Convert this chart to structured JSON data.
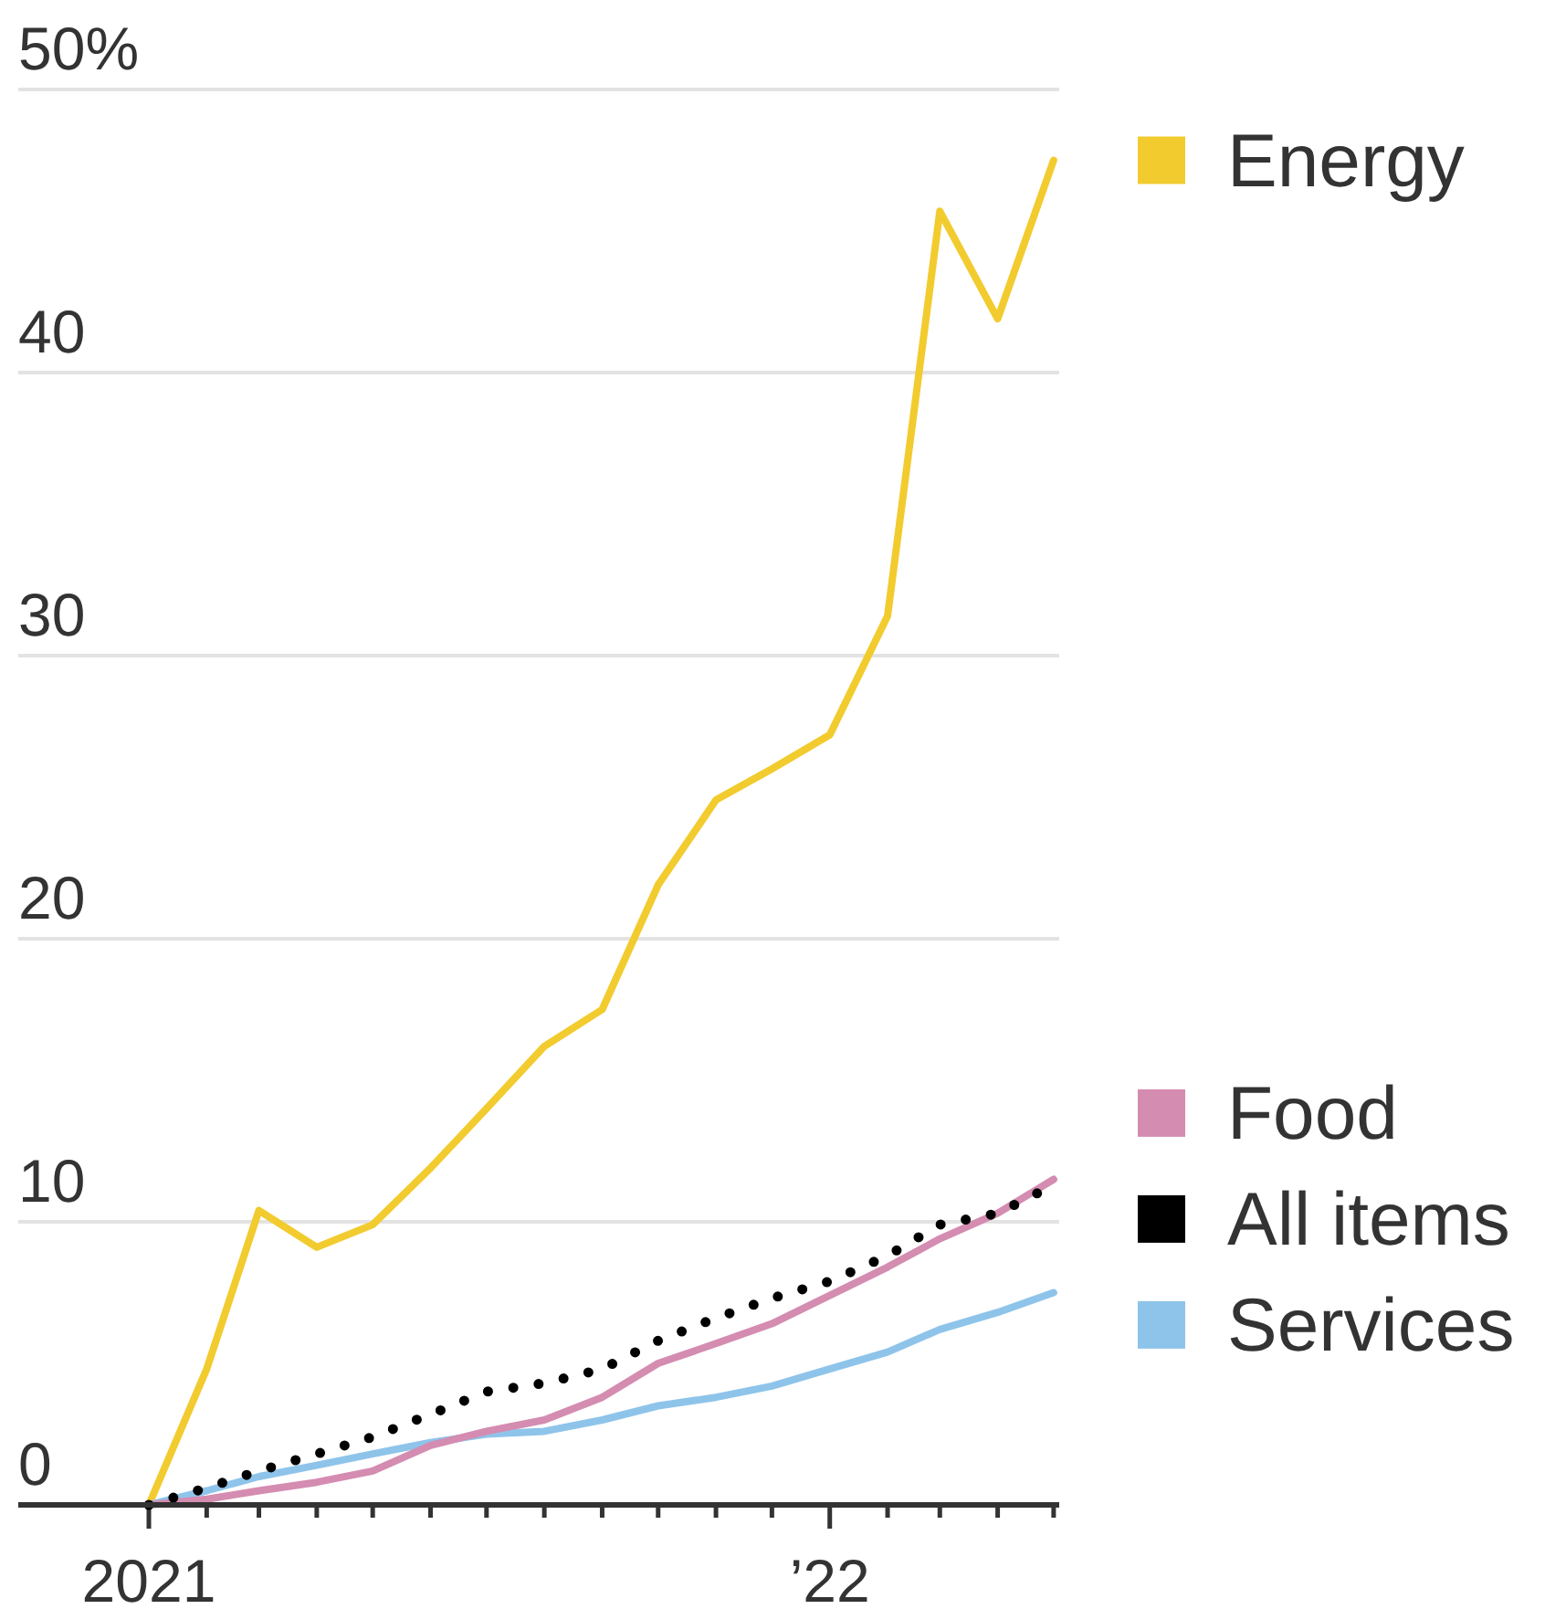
{
  "chart_data": {
    "type": "line",
    "x": [
      "2021-01",
      "2021-02",
      "2021-03",
      "2021-04",
      "2021-05",
      "2021-06",
      "2021-07",
      "2021-08",
      "2021-09",
      "2021-10",
      "2021-11",
      "2021-12",
      "2022-01",
      "2022-02",
      "2022-03",
      "2022-04",
      "2022-05"
    ],
    "xlim": [
      "2020-10-23",
      "2022-05-04"
    ],
    "xticks": [
      {
        "value": "2021-01",
        "label": "2021"
      },
      {
        "value": "2021-02",
        "label": null
      },
      {
        "value": "2021-03",
        "label": null
      },
      {
        "value": "2021-04",
        "label": null
      },
      {
        "value": "2021-05",
        "label": null
      },
      {
        "value": "2021-06",
        "label": null
      },
      {
        "value": "2021-07",
        "label": null
      },
      {
        "value": "2021-08",
        "label": null
      },
      {
        "value": "2021-09",
        "label": null
      },
      {
        "value": "2021-10",
        "label": null
      },
      {
        "value": "2021-11",
        "label": null
      },
      {
        "value": "2021-12",
        "label": null
      },
      {
        "value": "2022-01",
        "label": "’22"
      },
      {
        "value": "2022-02",
        "label": null
      },
      {
        "value": "2022-03",
        "label": null
      },
      {
        "value": "2022-04",
        "label": null
      },
      {
        "value": "2022-05",
        "label": null
      }
    ],
    "ylim": [
      0,
      50
    ],
    "yticks": [
      0,
      10,
      20,
      30,
      40,
      {
        "value": 50,
        "label": "50%"
      }
    ],
    "grid": "y",
    "legend": "right",
    "series": [
      {
        "name": "Energy",
        "color": "#f2cb2e",
        "values": [
          0,
          4.8,
          10.4,
          9.1,
          9.9,
          11.9,
          14.0,
          16.2,
          17.5,
          21.9,
          24.9,
          26.0,
          27.2,
          31.4,
          45.7,
          41.9,
          47.5
        ]
      },
      {
        "name": "Services",
        "color": "#8ec4ea",
        "values": [
          0,
          0.5,
          1.0,
          1.4,
          1.8,
          2.2,
          2.5,
          2.6,
          3.0,
          3.5,
          3.8,
          4.2,
          4.8,
          5.4,
          6.2,
          6.8,
          7.5
        ]
      },
      {
        "name": "Food",
        "color": "#d48cb1",
        "values": [
          0,
          0.2,
          0.5,
          0.8,
          1.2,
          2.1,
          2.6,
          3.0,
          3.8,
          5.0,
          5.7,
          6.4,
          7.4,
          8.4,
          9.4,
          10.3,
          11.5
        ]
      },
      {
        "name": "All items",
        "color": "#000000",
        "line_style": "dotted",
        "values": [
          0,
          0.6,
          1.2,
          1.8,
          2.4,
          3.2,
          4.0,
          4.3,
          4.8,
          5.8,
          6.6,
          7.3,
          7.9,
          8.8,
          9.9,
          10.3,
          11.3
        ]
      }
    ]
  }
}
